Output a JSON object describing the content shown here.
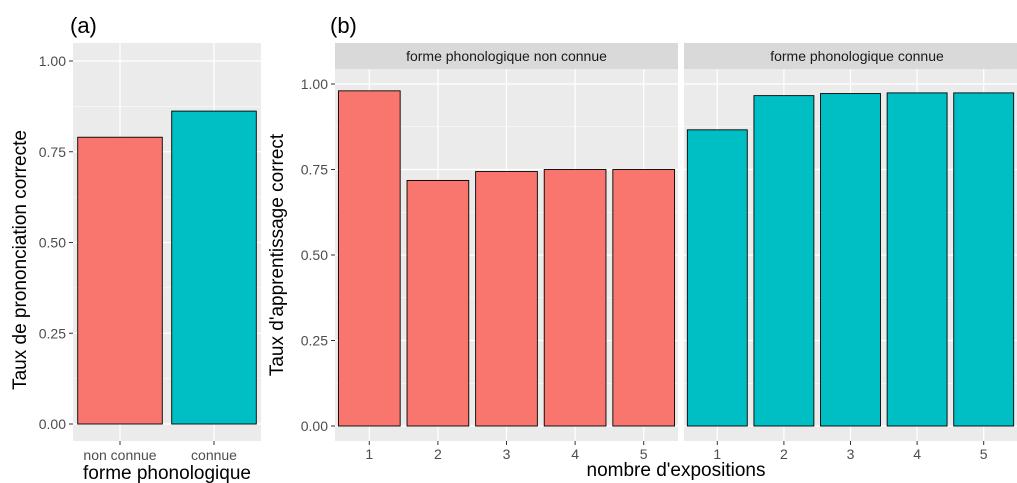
{
  "colors": {
    "non_connue": "#f8766d",
    "connue": "#00bfc4"
  },
  "chart_data": [
    {
      "type": "bar",
      "panel_label": "(a)",
      "title": "",
      "xlabel": "forme phonologique",
      "ylabel": "Taux de prononciation correcte",
      "ylim": [
        0,
        1.05
      ],
      "yticks": [
        "0.00",
        "0.25",
        "0.50",
        "0.75",
        "1.00"
      ],
      "ytick_values": [
        0,
        0.25,
        0.5,
        0.75,
        1.0
      ],
      "grid": true,
      "categories": [
        "non connue",
        "connue"
      ],
      "values": [
        0.79,
        0.862
      ],
      "bar_colors": [
        "#f8766d",
        "#00bfc4"
      ]
    },
    {
      "type": "bar",
      "panel_label": "(b)",
      "title": "",
      "xlabel": "nombre d'expositions",
      "ylabel": "Taux d'apprentissage correct",
      "ylim": [
        0,
        1.05
      ],
      "yticks": [
        "0.00",
        "0.25",
        "0.50",
        "0.75",
        "1.00"
      ],
      "ytick_values": [
        0,
        0.25,
        0.5,
        0.75,
        1.0
      ],
      "grid": true,
      "categories": [
        "1",
        "2",
        "3",
        "4",
        "5"
      ],
      "facets": [
        {
          "strip": "forme phonologique non connue",
          "values": [
            0.98,
            0.718,
            0.744,
            0.75,
            0.75
          ],
          "color": "#f8766d"
        },
        {
          "strip": "forme phonologique connue",
          "values": [
            0.866,
            0.966,
            0.972,
            0.974,
            0.974
          ],
          "color": "#00bfc4"
        }
      ]
    }
  ]
}
